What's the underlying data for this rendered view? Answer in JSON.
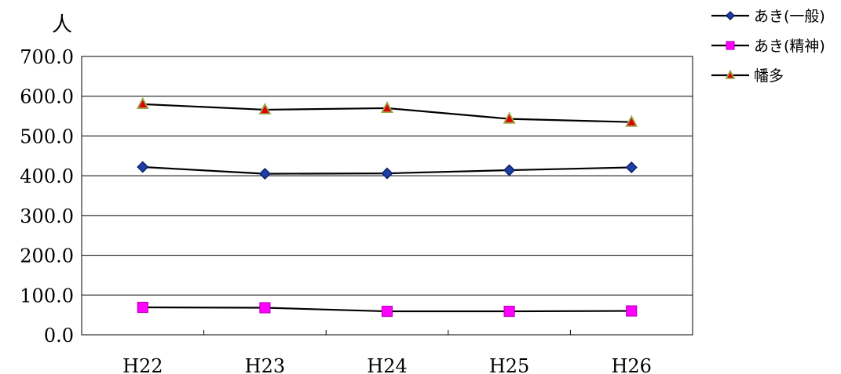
{
  "chart_data": {
    "type": "line",
    "ylabel": "人",
    "categories": [
      "H22",
      "H23",
      "H24",
      "H25",
      "H26"
    ],
    "ylim": [
      0,
      700
    ],
    "yticks": [
      "0.0",
      "100.0",
      "200.0",
      "300.0",
      "400.0",
      "500.0",
      "600.0",
      "700.0"
    ],
    "grid": true,
    "legend_position": "top-right",
    "series": [
      {
        "name": "あき(一般)",
        "values": [
          422,
          405,
          406,
          414,
          421
        ],
        "marker": "diamond",
        "marker_color": "#1f3fa8",
        "line_color": "#000000"
      },
      {
        "name": "あき(精神)",
        "values": [
          69,
          68,
          59,
          59,
          60
        ],
        "marker": "square",
        "marker_color": "#ff00ff",
        "line_color": "#000000"
      },
      {
        "name": "幡多",
        "values": [
          580,
          566,
          570,
          543,
          535
        ],
        "marker": "triangle",
        "marker_color": "#e00000",
        "marker_edge": "#9aa84a",
        "line_color": "#000000"
      }
    ]
  }
}
